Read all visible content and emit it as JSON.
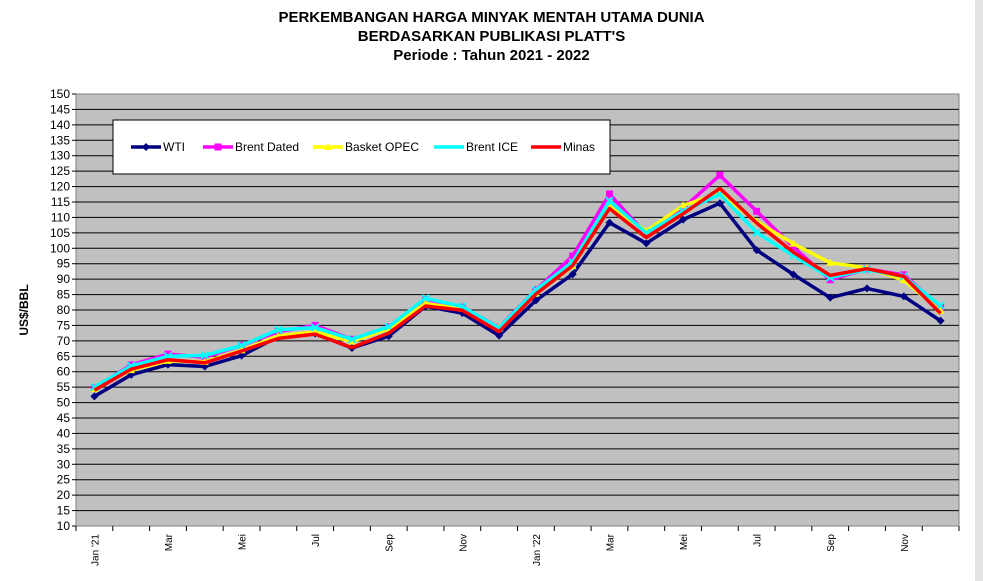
{
  "chart_data": {
    "type": "line",
    "title_lines": [
      "PERKEMBANGAN HARGA MINYAK MENTAH UTAMA DUNIA",
      "BERDASARKAN PUBLIKASI PLATT'S",
      "Periode : Tahun 2021 - 2022"
    ],
    "ylabel": "US$/BBL",
    "xlabel": "",
    "ylim": [
      10,
      150
    ],
    "ystep": 5,
    "grid": true,
    "legend_position": "top-left",
    "plot_background": "#c0c0c0",
    "x_tick_labels": [
      "Jan '21",
      "Mar",
      "Mei",
      "Jul",
      "Sep",
      "Nov",
      "Jan '22",
      "Mar",
      "Mei",
      "Jul",
      "Sep",
      "Nov"
    ],
    "x_tick_label_every": 2,
    "n_points": 24,
    "series": [
      {
        "name": "WTI",
        "color": "#000080",
        "values": [
          52,
          59,
          62.3,
          61.7,
          65.2,
          71.4,
          72.4,
          67.7,
          71.5,
          81.2,
          79,
          71.7,
          83.1,
          91.6,
          108.3,
          101.6,
          109.3,
          114.6,
          99.4,
          91.5,
          84,
          87,
          84.4,
          76.5
        ]
      },
      {
        "name": "Brent Dated",
        "color": "#ff00ff",
        "values": [
          54.8,
          62.2,
          65.7,
          64.7,
          68.5,
          73,
          75,
          70.5,
          74.5,
          83.4,
          80.9,
          74.4,
          86.5,
          97.5,
          117.6,
          104.5,
          113,
          123.7,
          112,
          100.4,
          89.8,
          93.3,
          91.4,
          80.9
        ]
      },
      {
        "name": "Basket OPEC",
        "color": "#ffff00",
        "values": [
          54.4,
          60.5,
          63.5,
          63.2,
          66.9,
          71.6,
          72.9,
          69.8,
          73.9,
          82.1,
          80.4,
          74.4,
          85.4,
          94.2,
          113.5,
          105.6,
          113.9,
          117.7,
          108.7,
          101.5,
          95.3,
          93.6,
          89.7,
          79.7
        ]
      },
      {
        "name": "Brent ICE",
        "color": "#00ffff",
        "values": [
          55,
          61.9,
          65,
          65.3,
          68.5,
          73.6,
          74.3,
          70.5,
          74.6,
          83.8,
          81.1,
          74.2,
          86.5,
          95.5,
          115.4,
          105,
          112,
          117.5,
          105.1,
          97.6,
          90.5,
          93.1,
          90.9,
          81.4
        ]
      },
      {
        "name": "Minas",
        "color": "#ff0000",
        "values": [
          54,
          60.8,
          63.9,
          62.9,
          66.7,
          70.8,
          72.2,
          67.8,
          72.5,
          81.3,
          79.9,
          73,
          85.2,
          94.4,
          112.9,
          103.5,
          111.2,
          119.4,
          108.2,
          98.7,
          91.2,
          93.4,
          90.9,
          78.9
        ]
      }
    ]
  }
}
